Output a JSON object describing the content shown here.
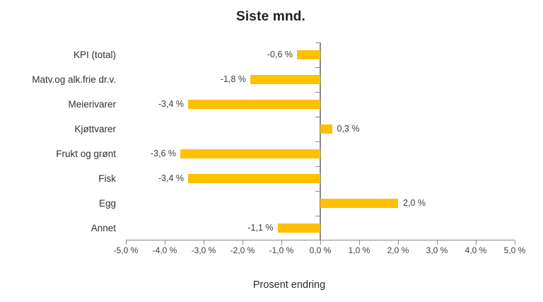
{
  "chart": {
    "title": "Siste mnd.",
    "x_axis_title": "Prosent endring",
    "bar_color": "#FFC000",
    "axis_color": "#898989",
    "text_color": "#3d3d3d"
  },
  "chart_data": {
    "type": "bar",
    "orientation": "horizontal",
    "title": "Siste mnd.",
    "xlabel": "Prosent endring",
    "ylabel": "",
    "categories": [
      "KPI (total)",
      "Matv.og alk.frie dr.v.",
      "Meierivarer",
      "Kjøttvarer",
      "Frukt og grønt",
      "Fisk",
      "Egg",
      "Annet"
    ],
    "values": [
      -0.6,
      -1.8,
      -3.4,
      0.3,
      -3.6,
      -3.4,
      2.0,
      -1.1
    ],
    "value_labels": [
      "-0,6 %",
      "-1,8 %",
      "-3,4 %",
      "0,3 %",
      "-3,6 %",
      "-3,4 %",
      "2,0 %",
      "-1,1 %"
    ],
    "xlim": [
      -5,
      5
    ],
    "x_ticks": [
      -5,
      -4,
      -3,
      -2,
      -1,
      0,
      1,
      2,
      3,
      4,
      5
    ],
    "x_tick_labels": [
      "-5,0 %",
      "-4,0 %",
      "-3,0 %",
      "-2,0 %",
      "-1,0 %",
      "0,0 %",
      "1,0 %",
      "2,0 %",
      "3,0 %",
      "4,0 %",
      "5,0 %"
    ],
    "grid": false,
    "legend": false,
    "bar_color": "#FFC000"
  }
}
